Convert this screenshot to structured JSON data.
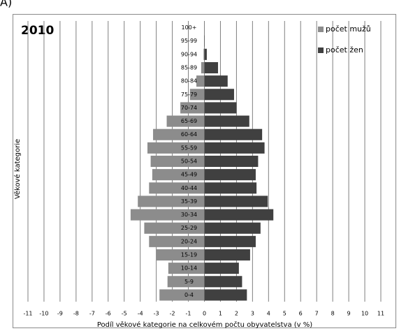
{
  "panel_label": "A)",
  "chart_data": {
    "type": "pyramid",
    "title": "2010",
    "xlabel": "Podíl věkové kategorie na celkovém počtu obyvatelstva (v %)",
    "ylabel": "Věkové kategorie",
    "categories": [
      "0-4",
      "5-9",
      "10-14",
      "15-19",
      "20-24",
      "25-29",
      "30-34",
      "35-39",
      "40-44",
      "45-49",
      "50-54",
      "55-59",
      "60-64",
      "65-69",
      "70-74",
      "75-79",
      "80-84",
      "85-89",
      "90-94",
      "95-99",
      "100+"
    ],
    "series": [
      {
        "name": "počet mužů",
        "color": "#8c8c8c",
        "values": [
          -2.8,
          -2.3,
          -2.25,
          -3.0,
          -3.45,
          -3.75,
          -4.6,
          -4.15,
          -3.45,
          -3.25,
          -3.35,
          -3.55,
          -3.2,
          -2.35,
          -1.5,
          -0.9,
          -0.5,
          -0.2,
          -0.05,
          0,
          0
        ]
      },
      {
        "name": "počet žen",
        "color": "#404040",
        "values": [
          2.65,
          2.35,
          2.15,
          2.85,
          3.2,
          3.5,
          4.3,
          3.95,
          3.25,
          3.2,
          3.35,
          3.75,
          3.6,
          2.8,
          2.0,
          1.85,
          1.45,
          0.85,
          0.15,
          0.02,
          0
        ]
      }
    ],
    "xlim": [
      -11,
      11
    ],
    "xticks": [
      -11,
      -10,
      -9,
      -8,
      -7,
      -6,
      -5,
      -4,
      -3,
      -2,
      -1,
      0,
      1,
      2,
      3,
      4,
      5,
      6,
      7,
      8,
      9,
      10,
      11
    ],
    "grid": true,
    "legend": "upper right"
  }
}
